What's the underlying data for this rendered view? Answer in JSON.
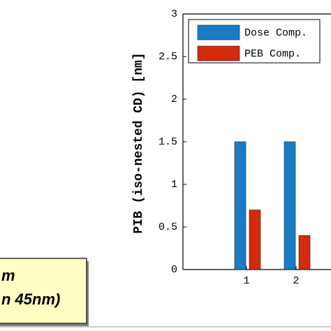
{
  "chart_data": {
    "type": "bar",
    "y_label": "PIB (iso-nested CD) [nm]",
    "categories": [
      "1",
      "2"
    ],
    "series": [
      {
        "name": "Dose Comp.",
        "color": "#1a7cc4",
        "values": [
          1.5,
          1.5
        ]
      },
      {
        "name": "PEB Comp.",
        "color": "#d42a0e",
        "values": [
          0.7,
          0.4
        ]
      }
    ],
    "ylim": [
      0,
      3
    ],
    "yticks": [
      0,
      0.5,
      1,
      1.5,
      2,
      2.5,
      3
    ],
    "legend": "upper-right",
    "annotations": [
      "m",
      "n 45nm)"
    ]
  }
}
